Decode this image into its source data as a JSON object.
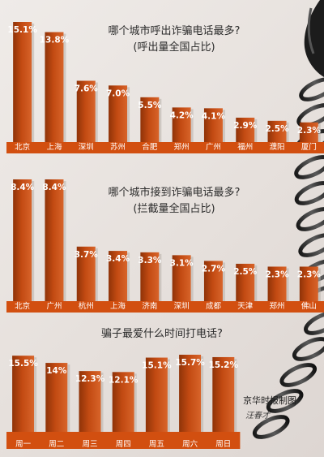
{
  "credit": "京华时报制图",
  "signature": "汪春才",
  "colors": {
    "bar": "#c24a12",
    "bar_dark": "#8f3308",
    "bar_light": "#d8642a",
    "base": "#d24f10"
  },
  "chart_data": [
    {
      "type": "bar",
      "title": "哪个城市呼出诈骗电话最多?",
      "subtitle": "(呼出量全国占比)",
      "categories": [
        "北京",
        "上海",
        "深圳",
        "苏州",
        "合肥",
        "郑州",
        "广州",
        "福州",
        "濮阳",
        "厦门"
      ],
      "values": [
        15.1,
        13.8,
        7.6,
        7.0,
        5.5,
        4.2,
        4.1,
        2.9,
        2.5,
        2.3
      ],
      "value_labels": [
        "15.1%",
        "13.8%",
        "7.6%",
        "7.0%",
        "5.5%",
        "4.2%",
        "4.1%",
        "2.9%",
        "2.5%",
        "2.3%"
      ],
      "xlabel": "",
      "ylabel": "",
      "ylim": [
        0,
        15.1
      ],
      "grid": false
    },
    {
      "type": "bar",
      "title": "哪个城市接到诈骗电话最多?",
      "subtitle": "(拦截量全国占比)",
      "categories": [
        "北京",
        "广州",
        "杭州",
        "上海",
        "济南",
        "深圳",
        "成都",
        "天津",
        "郑州",
        "佛山"
      ],
      "values": [
        8.4,
        8.4,
        3.7,
        3.4,
        3.3,
        3.1,
        2.7,
        2.5,
        2.3,
        2.3
      ],
      "value_labels": [
        "8.4%",
        "8.4%",
        "3.7%",
        "3.4%",
        "3.3%",
        "3.1%",
        "2.7%",
        "2.5%",
        "2.3%",
        "2.3%"
      ],
      "xlabel": "",
      "ylabel": "",
      "ylim": [
        0,
        8.4
      ],
      "grid": false
    },
    {
      "type": "bar",
      "title": "骗子最爱什么时间打电话?",
      "subtitle": "",
      "categories": [
        "周一",
        "周二",
        "周三",
        "周四",
        "周五",
        "周六",
        "周日"
      ],
      "values": [
        15.5,
        14,
        12.3,
        12.1,
        15.1,
        15.7,
        15.2
      ],
      "value_labels": [
        "15.5%",
        "14%",
        "12.3%",
        "12.1%",
        "15.1%",
        "15.7%",
        "15.2%"
      ],
      "xlabel": "",
      "ylabel": "",
      "ylim": [
        0,
        15.7
      ],
      "grid": false
    }
  ]
}
